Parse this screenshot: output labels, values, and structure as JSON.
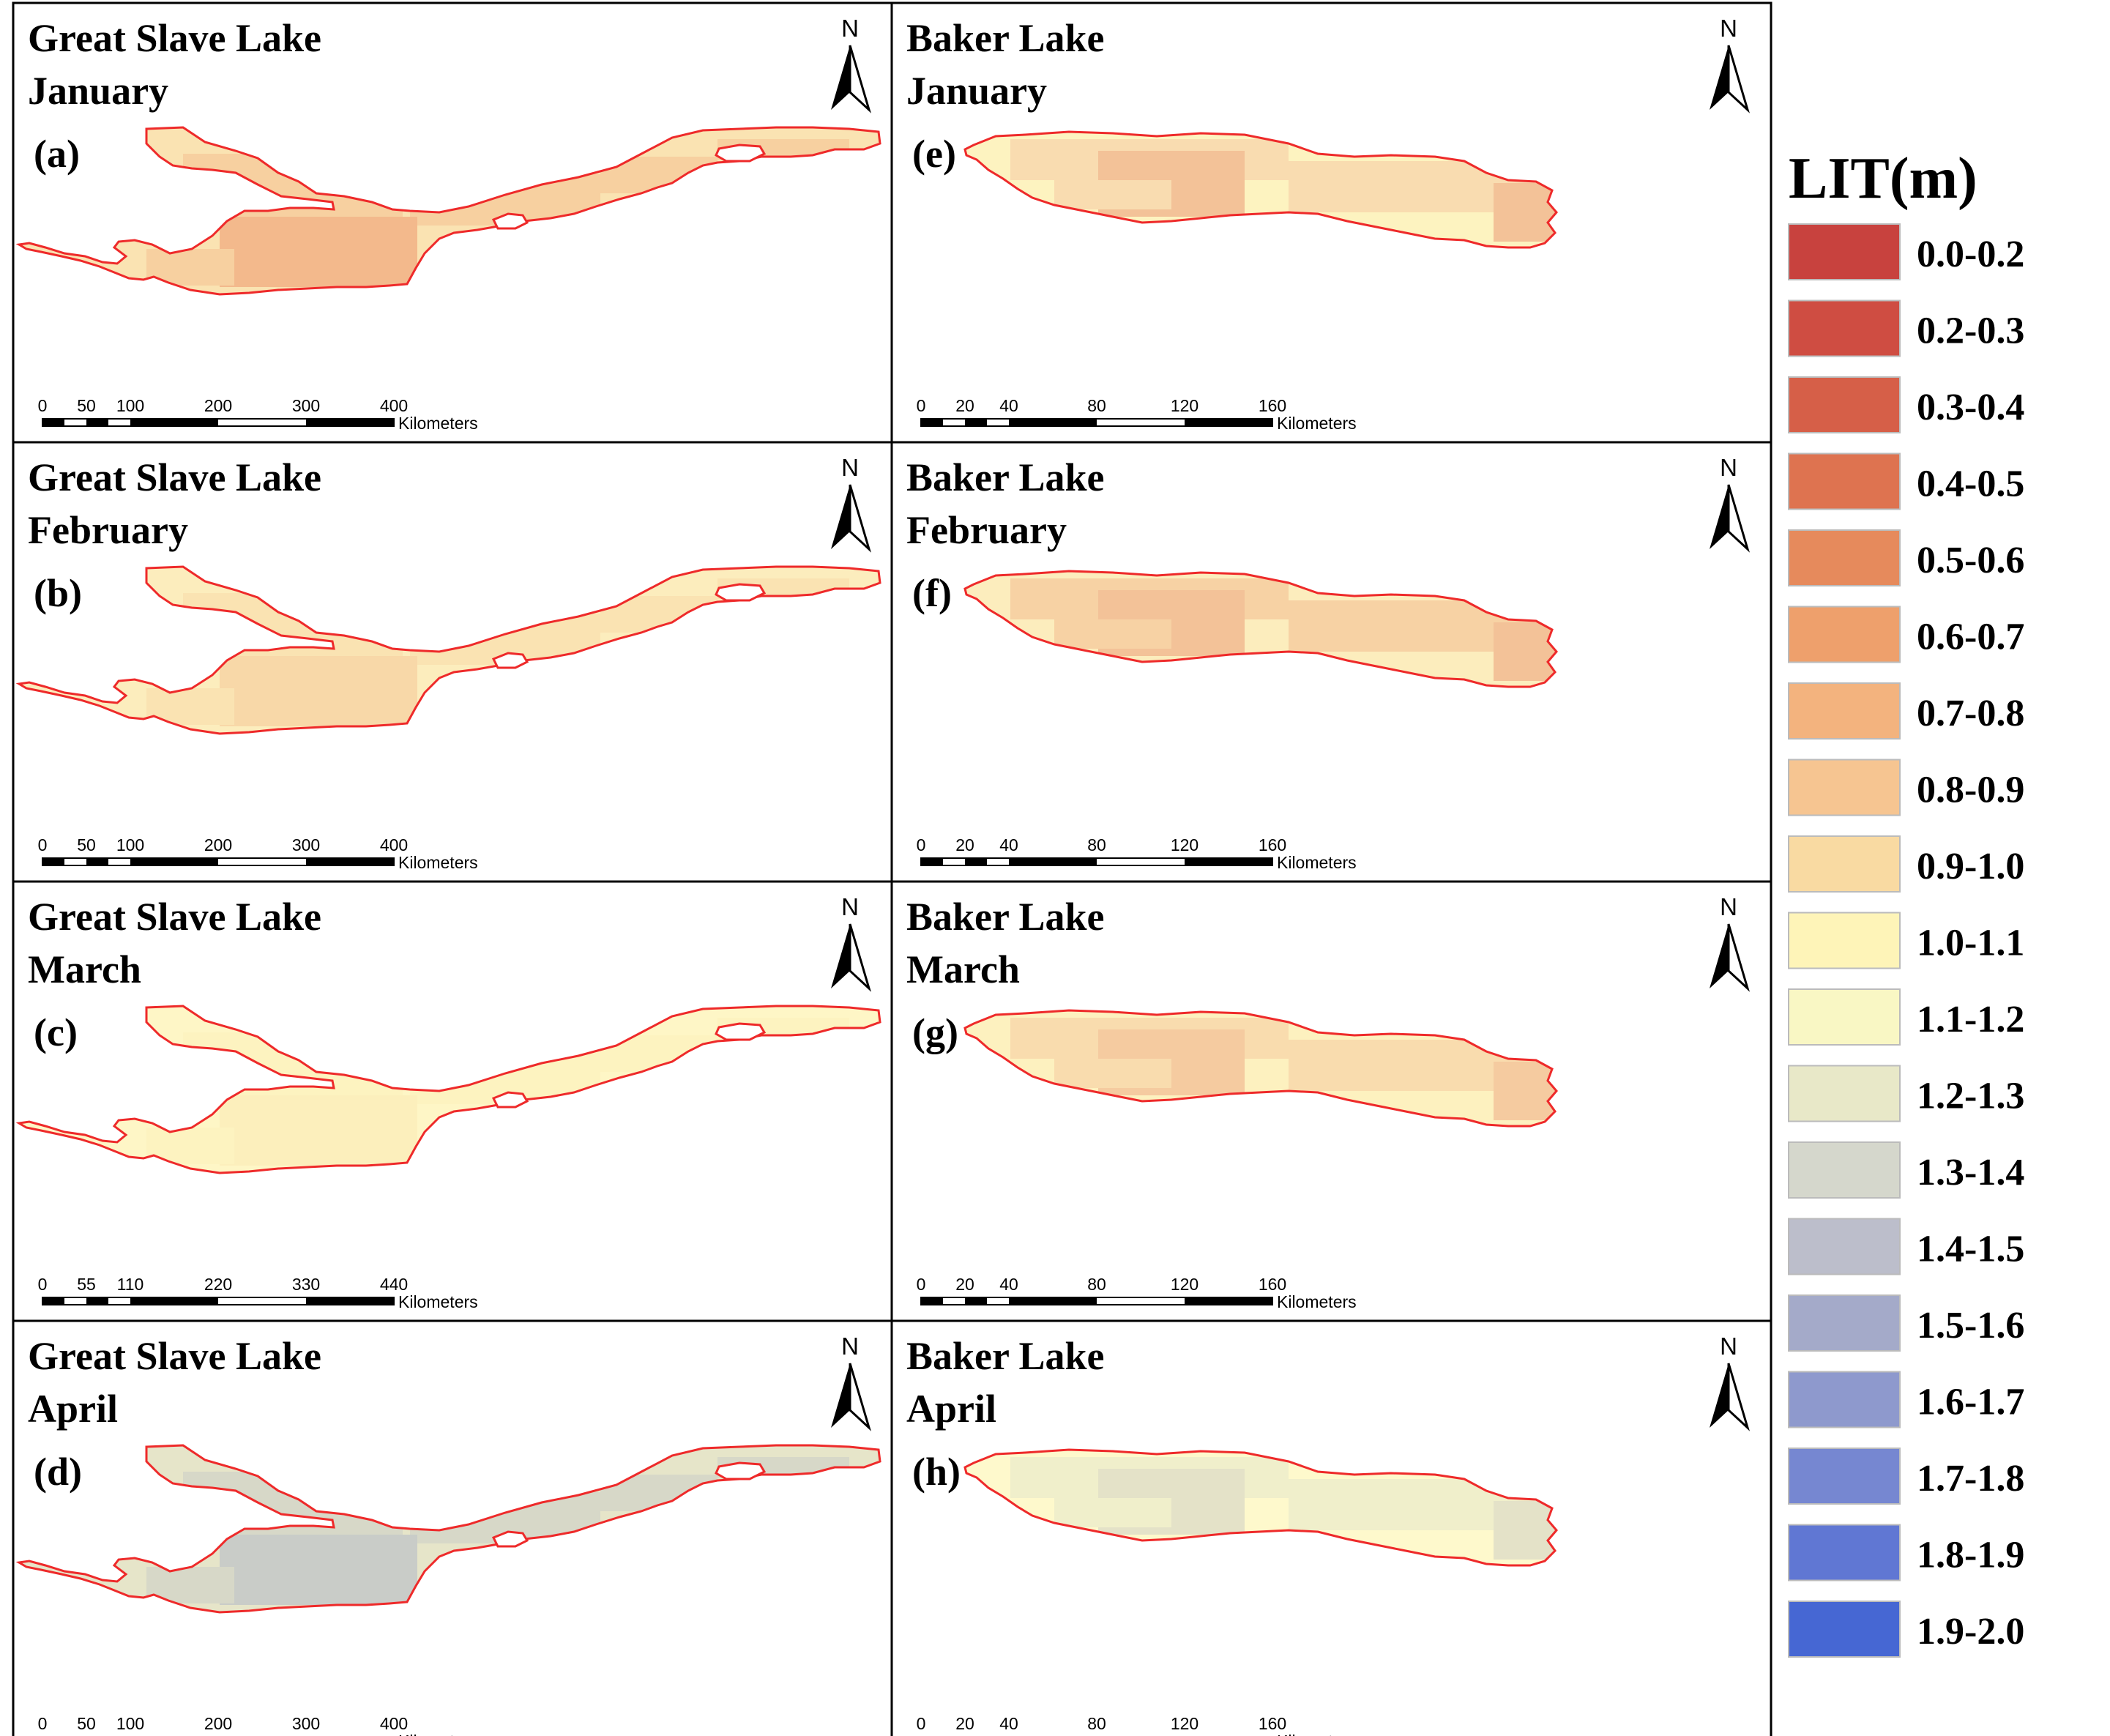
{
  "panels": [
    {
      "key": "a",
      "lake": "Great Slave Lake",
      "month": "January",
      "label": "(a)",
      "colors": {
        "base": "#fae3b2",
        "mid": "#f7d0a0",
        "deep": "#f3b98c"
      },
      "scale": {
        "ticks": [
          "0",
          "50",
          "100",
          "200",
          "300",
          "400"
        ],
        "unit": "Kilometers"
      }
    },
    {
      "key": "b",
      "lake": "Great Slave Lake",
      "month": "February",
      "label": "(b)",
      "colors": {
        "base": "#fcedbd",
        "mid": "#fae3b2",
        "deep": "#f8d8a8"
      },
      "scale": {
        "ticks": [
          "0",
          "50",
          "100",
          "200",
          "300",
          "400"
        ],
        "unit": "Kilometers"
      }
    },
    {
      "key": "c",
      "lake": "Great Slave Lake",
      "month": "March",
      "label": "(c)",
      "colors": {
        "base": "#fef6c6",
        "mid": "#fdf3c0",
        "deep": "#fcefbc"
      },
      "scale": {
        "ticks": [
          "0",
          "55",
          "110",
          "220",
          "330",
          "440"
        ],
        "unit": "Kilometers"
      }
    },
    {
      "key": "d",
      "lake": "Great Slave Lake",
      "month": "April",
      "label": "(d)",
      "colors": {
        "base": "#e6e5c9",
        "mid": "#d7d8c8",
        "deep": "#c9ccc8"
      },
      "scale": {
        "ticks": [
          "0",
          "50",
          "100",
          "200",
          "300",
          "400"
        ],
        "unit": "Kilometers"
      }
    },
    {
      "key": "e",
      "lake": "Baker Lake",
      "month": "January",
      "label": "(e)",
      "colors": {
        "base": "#fdf3c0",
        "mid": "#f9dcb0",
        "deep": "#f3c298"
      },
      "scale": {
        "ticks": [
          "0",
          "20",
          "40",
          "80",
          "120",
          "160"
        ],
        "unit": "Kilometers"
      }
    },
    {
      "key": "f",
      "lake": "Baker Lake",
      "month": "February",
      "label": "(f)",
      "colors": {
        "base": "#fcedbd",
        "mid": "#f7d2a4",
        "deep": "#f3c298"
      },
      "scale": {
        "ticks": [
          "0",
          "20",
          "40",
          "80",
          "120",
          "160"
        ],
        "unit": "Kilometers"
      }
    },
    {
      "key": "g",
      "lake": "Baker Lake",
      "month": "March",
      "label": "(g)",
      "colors": {
        "base": "#fdf1bf",
        "mid": "#f9dcae",
        "deep": "#f5cba0"
      },
      "scale": {
        "ticks": [
          "0",
          "20",
          "40",
          "80",
          "120",
          "160"
        ],
        "unit": "Kilometers"
      }
    },
    {
      "key": "h",
      "lake": "Baker Lake",
      "month": "April",
      "label": "(h)",
      "colors": {
        "base": "#fef9cc",
        "mid": "#f0efcb",
        "deep": "#e4e2c8"
      },
      "scale": {
        "ticks": [
          "0",
          "20",
          "40",
          "80",
          "120",
          "160"
        ],
        "unit": "Kilometers"
      }
    }
  ],
  "north_label": "N",
  "outline_color": "#ee2a2a",
  "legend": {
    "title": "LIT(m)",
    "items": [
      {
        "label": "0.0-0.2",
        "color": "#c8423e"
      },
      {
        "label": "0.2-0.3",
        "color": "#cf4d42"
      },
      {
        "label": "0.3-0.4",
        "color": "#d65f48"
      },
      {
        "label": "0.4-0.5",
        "color": "#de7350"
      },
      {
        "label": "0.5-0.6",
        "color": "#e68a5c"
      },
      {
        "label": "0.6-0.7",
        "color": "#eea06c"
      },
      {
        "label": "0.7-0.8",
        "color": "#f3b37e"
      },
      {
        "label": "0.8-0.9",
        "color": "#f6c591"
      },
      {
        "label": "0.9-1.0",
        "color": "#f9daa2"
      },
      {
        "label": "1.0-1.1",
        "color": "#fef4b8"
      },
      {
        "label": "1.1-1.2",
        "color": "#f9f7c4"
      },
      {
        "label": "1.2-1.3",
        "color": "#e8e8c8"
      },
      {
        "label": "1.3-1.4",
        "color": "#d5d7cc"
      },
      {
        "label": "1.4-1.5",
        "color": "#bcbecb"
      },
      {
        "label": "1.5-1.6",
        "color": "#a4aac9"
      },
      {
        "label": "1.6-1.7",
        "color": "#8e99cd"
      },
      {
        "label": "1.7-1.8",
        "color": "#7687d1"
      },
      {
        "label": "1.8-1.9",
        "color": "#6077d3"
      },
      {
        "label": "1.9-2.0",
        "color": "#4667d3"
      }
    ]
  }
}
